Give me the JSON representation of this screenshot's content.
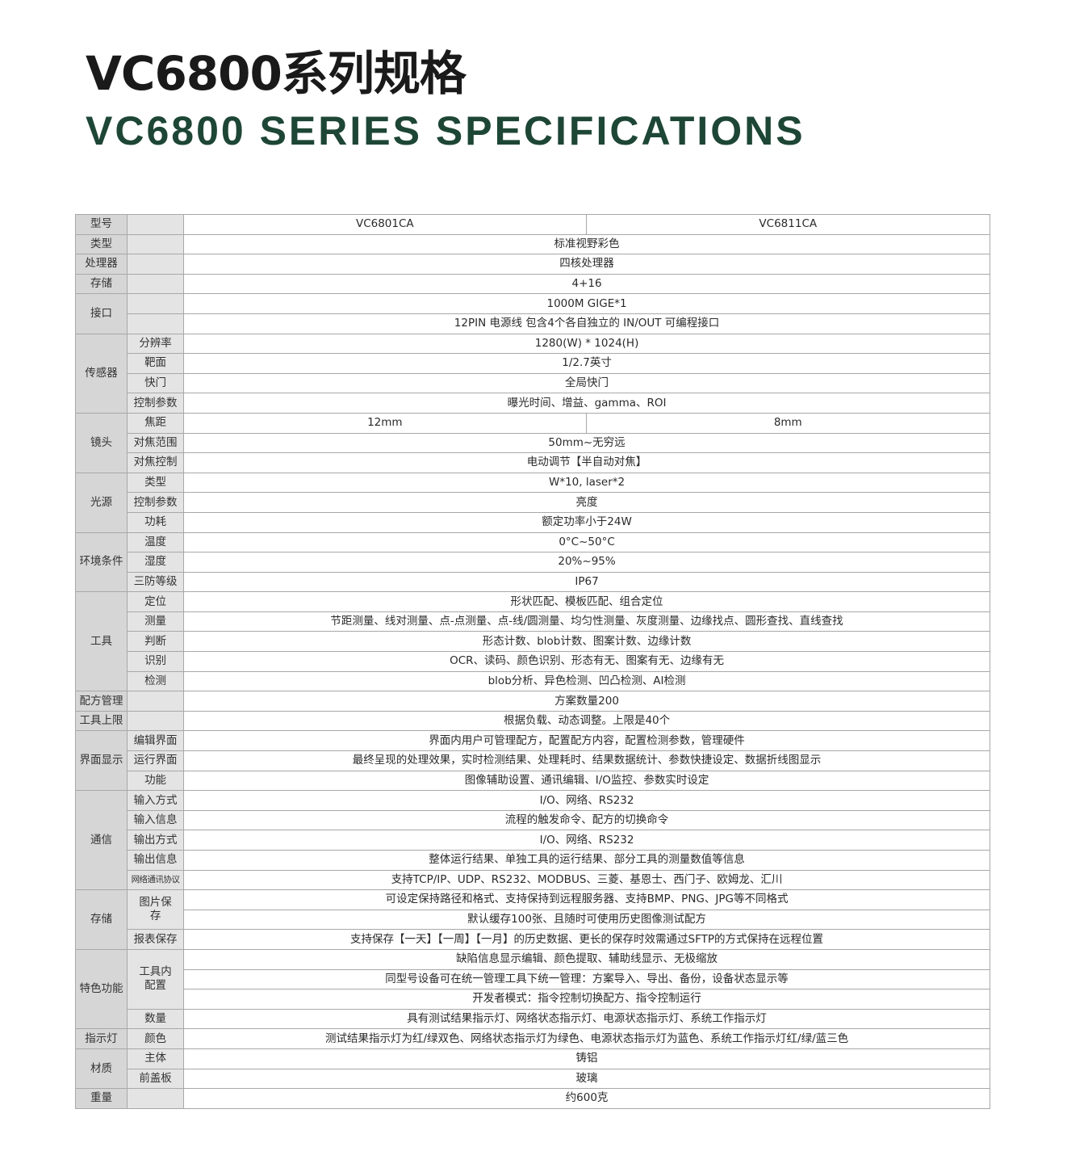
{
  "header": {
    "title": "VC6800系列规格",
    "subtitle": "VC6800 SERIES SPECIFICATIONS"
  },
  "colors": {
    "title": "#1a1a1a",
    "subtitle": "#1e4636",
    "label_bg": "#d6d6d6",
    "sublabel_bg": "#e4e4e4",
    "border": "#a8a8a8"
  },
  "spec_table": [
    {
      "group": "型号",
      "rows": [
        {
          "sub": "",
          "values": [
            "VC6801CA",
            "VC6811CA"
          ]
        }
      ]
    },
    {
      "group": "类型",
      "rows": [
        {
          "sub": "",
          "values": [
            "标准视野彩色"
          ]
        }
      ]
    },
    {
      "group": "处理器",
      "rows": [
        {
          "sub": "",
          "values": [
            "四核处理器"
          ]
        }
      ]
    },
    {
      "group": "存储",
      "rows": [
        {
          "sub": "",
          "values": [
            "4+16"
          ]
        }
      ]
    },
    {
      "group": "接口",
      "rows": [
        {
          "sub": "",
          "values": [
            "1000M GIGE*1"
          ]
        },
        {
          "sub": "",
          "values": [
            "12PIN 电源线 包含4个各自独立的 IN/OUT 可编程接口"
          ]
        }
      ]
    },
    {
      "group": "传感器",
      "rows": [
        {
          "sub": "分辨率",
          "values": [
            "1280(W) * 1024(H)"
          ]
        },
        {
          "sub": "靶面",
          "values": [
            "1/2.7英寸"
          ]
        },
        {
          "sub": "快门",
          "values": [
            "全局快门"
          ]
        },
        {
          "sub": "控制参数",
          "values": [
            "曝光时间、增益、gamma、ROI"
          ]
        }
      ]
    },
    {
      "group": "镜头",
      "rows": [
        {
          "sub": "焦距",
          "values": [
            "12mm",
            "8mm"
          ]
        },
        {
          "sub": "对焦范围",
          "values": [
            "50mm~无穷远"
          ]
        },
        {
          "sub": "对焦控制",
          "values": [
            "电动调节【半自动对焦】"
          ]
        }
      ]
    },
    {
      "group": "光源",
      "rows": [
        {
          "sub": "类型",
          "values": [
            "W*10, laser*2"
          ]
        },
        {
          "sub": "控制参数",
          "values": [
            "亮度"
          ]
        },
        {
          "sub": "功耗",
          "values": [
            "额定功率小于24W"
          ]
        }
      ]
    },
    {
      "group": "环境条件",
      "rows": [
        {
          "sub": "温度",
          "values": [
            "0°C~50°C"
          ]
        },
        {
          "sub": "湿度",
          "values": [
            "20%~95%"
          ]
        },
        {
          "sub": "三防等级",
          "values": [
            "IP67"
          ]
        }
      ]
    },
    {
      "group": "工具",
      "rows": [
        {
          "sub": "定位",
          "values": [
            "形状匹配、模板匹配、组合定位"
          ]
        },
        {
          "sub": "测量",
          "values": [
            "节距测量、线对测量、点-点测量、点-线/圆测量、均匀性测量、灰度测量、边缘找点、圆形查找、直线查找"
          ]
        },
        {
          "sub": "判断",
          "values": [
            "形态计数、blob计数、图案计数、边缘计数"
          ]
        },
        {
          "sub": "识别",
          "values": [
            "OCR、读码、颜色识别、形态有无、图案有无、边缘有无"
          ]
        },
        {
          "sub": "检测",
          "values": [
            "blob分析、异色检测、凹凸检测、AI检测"
          ]
        }
      ]
    },
    {
      "group": "配方管理",
      "rows": [
        {
          "sub": "",
          "values": [
            "方案数量200"
          ]
        }
      ]
    },
    {
      "group": "工具上限",
      "rows": [
        {
          "sub": "",
          "values": [
            "根据负载、动态调整。上限是40个"
          ]
        }
      ]
    },
    {
      "group": "界面显示",
      "rows": [
        {
          "sub": "编辑界面",
          "values": [
            "界面内用户可管理配方，配置配方内容，配置检测参数，管理硬件"
          ]
        },
        {
          "sub": "运行界面",
          "values": [
            "最终呈现的处理效果，实时检测结果、处理耗时、结果数据统计、参数快捷设定、数据折线图显示"
          ]
        },
        {
          "sub": "功能",
          "values": [
            "图像辅助设置、通讯编辑、I/O监控、参数实时设定"
          ]
        }
      ]
    },
    {
      "group": "通信",
      "rows": [
        {
          "sub": "输入方式",
          "values": [
            "I/O、网络、RS232"
          ]
        },
        {
          "sub": "输入信息",
          "values": [
            "流程的触发命令、配方的切换命令"
          ]
        },
        {
          "sub": "输出方式",
          "values": [
            "I/O、网络、RS232"
          ]
        },
        {
          "sub": "输出信息",
          "values": [
            "整体运行结果、单独工具的运行结果、部分工具的测量数值等信息"
          ]
        },
        {
          "sub": "网络通讯协议",
          "small": true,
          "values": [
            "支持TCP/IP、UDP、RS232、MODBUS、三菱、基恩士、西门子、欧姆龙、汇川"
          ]
        }
      ]
    },
    {
      "group": "存储",
      "rows": [
        {
          "sub": "图片保存",
          "sub_span": 2,
          "values": [
            "可设定保持路径和格式、支持保持到远程服务器、支持BMP、PNG、JPG等不同格式"
          ]
        },
        {
          "values": [
            "默认缓存100张、且随时可使用历史图像测试配方"
          ]
        },
        {
          "sub": "报表保存",
          "values": [
            "支持保存【一天】【一周】【一月】的历史数据、更长的保存时效需通过SFTP的方式保持在远程位置"
          ]
        }
      ]
    },
    {
      "group": "特色功能",
      "rows": [
        {
          "sub": "工具内配置",
          "sub_span": 3,
          "values": [
            "缺陷信息显示编辑、颜色提取、辅助线显示、无极缩放"
          ]
        },
        {
          "values": [
            "同型号设备可在统一管理工具下统一管理：方案导入、导出、备份，设备状态显示等"
          ]
        },
        {
          "values": [
            "开发者模式：指令控制切换配方、指令控制运行"
          ]
        },
        {
          "sub": "数量",
          "values": [
            "具有测试结果指示灯、网络状态指示灯、电源状态指示灯、系统工作指示灯"
          ]
        }
      ]
    },
    {
      "group": "指示灯",
      "rows": [
        {
          "sub": "颜色",
          "values": [
            "测试结果指示灯为红/绿双色、网络状态指示灯为绿色、电源状态指示灯为蓝色、系统工作指示灯红/绿/蓝三色"
          ]
        }
      ]
    },
    {
      "group": "材质",
      "rows": [
        {
          "sub": "主体",
          "values": [
            "铸铝"
          ]
        },
        {
          "sub": "前盖板",
          "values": [
            "玻璃"
          ]
        }
      ]
    },
    {
      "group": "重量",
      "rows": [
        {
          "sub": "",
          "values": [
            "约600克"
          ]
        }
      ]
    }
  ]
}
